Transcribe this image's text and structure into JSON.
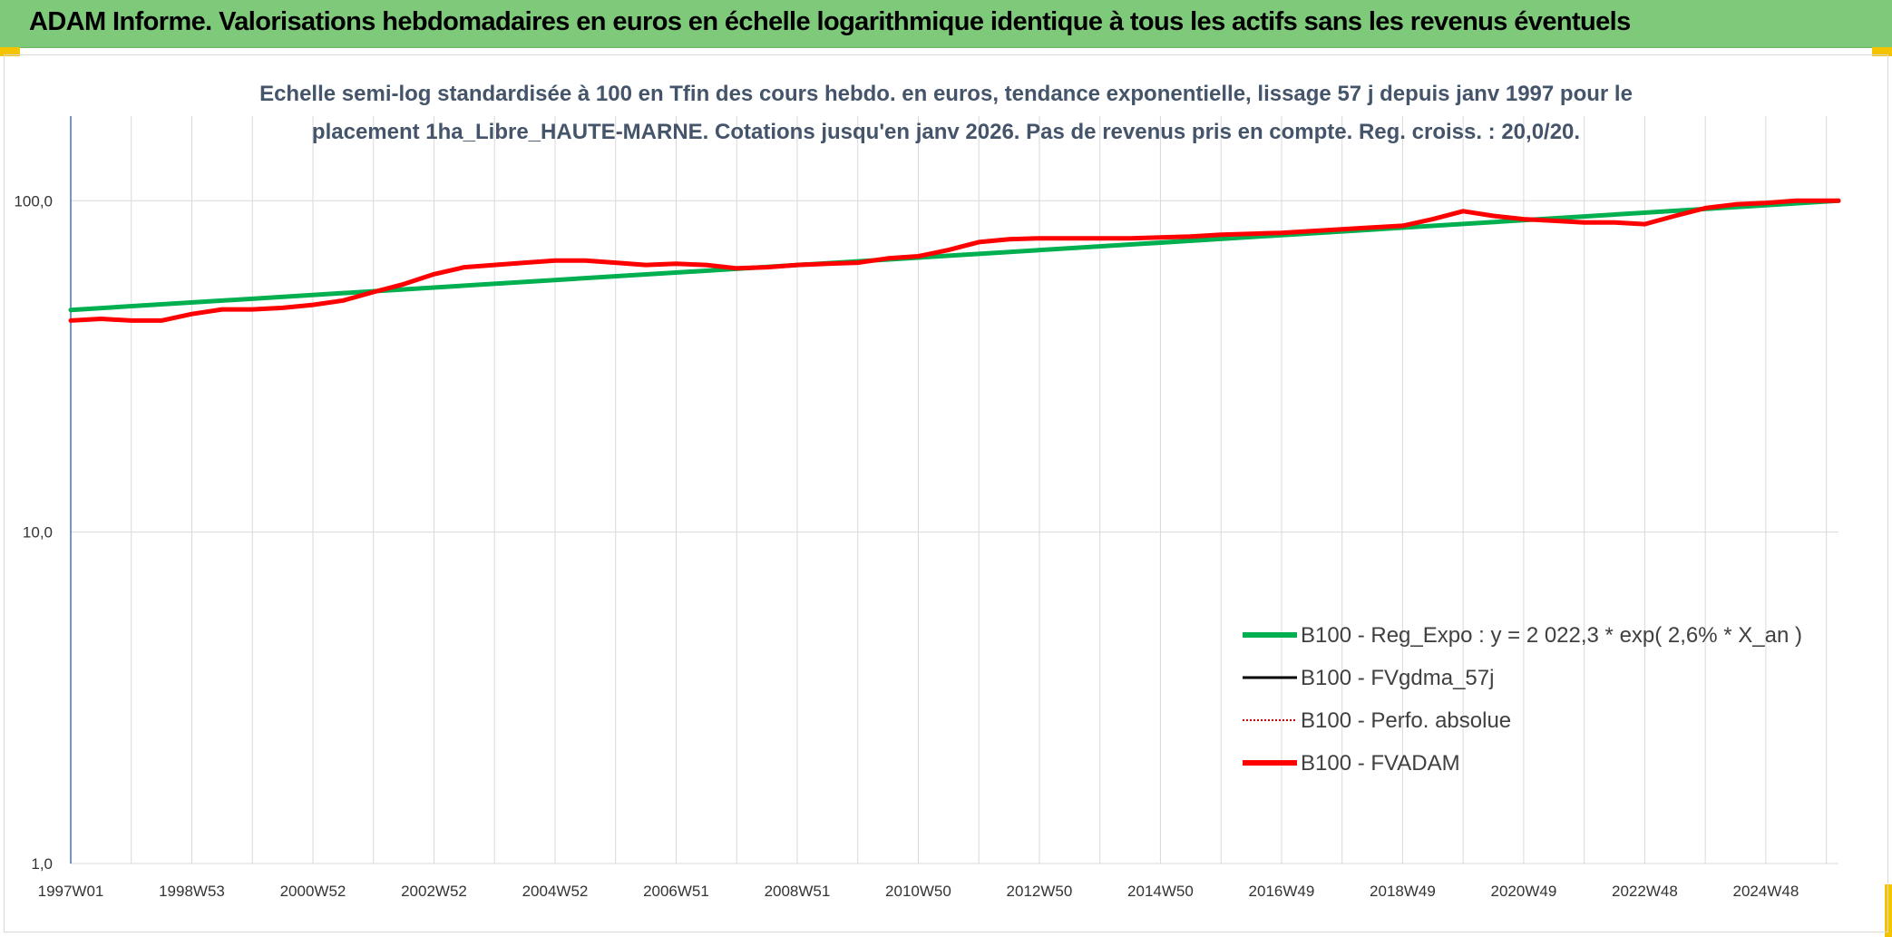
{
  "header": {
    "title": "ADAM Informe. Valorisations hebdomadaires en euros en échelle logarithmique identique à tous les actifs sans les revenus éventuels"
  },
  "colors": {
    "header_bg": "#7ec97a",
    "accent_corner": "#f5c400",
    "reg_expo": "#00b050",
    "fvgdma": "#000000",
    "perfo": "#c00000",
    "fvadam": "#ff0000",
    "subtitle": "#44546a"
  },
  "chart_data": {
    "type": "line",
    "title_lines": [
      "Echelle semi-log standardisée à 100 en Tfin des cours hebdo. en euros, tendance exponentielle, lissage 57 j depuis janv 1997 pour le",
      "placement 1ha_Libre_HAUTE-MARNE. Cotations jusqu'en janv 2026. Pas de revenus pris en compte. Reg. croiss. : 20,0/20."
    ],
    "y_scale": "log",
    "ylim": [
      1,
      180
    ],
    "y_ticks": [
      {
        "value": 1,
        "label": "1,0"
      },
      {
        "value": 10,
        "label": "10,0"
      },
      {
        "value": 100,
        "label": "100,0"
      }
    ],
    "xlim": [
      1997.0,
      2026.2
    ],
    "x_ticks": [
      {
        "value": 1997.0,
        "label": "1997W01"
      },
      {
        "value": 1999.0,
        "label": "1998W53"
      },
      {
        "value": 2001.0,
        "label": "2000W52"
      },
      {
        "value": 2003.0,
        "label": "2002W52"
      },
      {
        "value": 2005.0,
        "label": "2004W52"
      },
      {
        "value": 2007.0,
        "label": "2006W51"
      },
      {
        "value": 2009.0,
        "label": "2008W51"
      },
      {
        "value": 2011.0,
        "label": "2010W50"
      },
      {
        "value": 2013.0,
        "label": "2012W50"
      },
      {
        "value": 2015.0,
        "label": "2014W50"
      },
      {
        "value": 2017.0,
        "label": "2016W49"
      },
      {
        "value": 2019.0,
        "label": "2018W49"
      },
      {
        "value": 2021.0,
        "label": "2020W49"
      },
      {
        "value": 2023.0,
        "label": "2022W48"
      },
      {
        "value": 2025.0,
        "label": "2024W48"
      }
    ],
    "legend_position": "right",
    "series": [
      {
        "name": "B100 - Reg_Expo : y = 2 022,3 * exp( 2,6% *  X_an )",
        "style": "solid-thick",
        "color": "#00b050",
        "x": [
          1997.0,
          2026.2
        ],
        "y": [
          46.8,
          100.0
        ]
      },
      {
        "name": "B100 - FVgdma_57j",
        "style": "solid-thin",
        "color": "#000000",
        "x": [],
        "y": []
      },
      {
        "name": "B100 - Perfo. absolue",
        "style": "dotted",
        "color": "#c00000",
        "x": [],
        "y": []
      },
      {
        "name": "B100 - FVADAM",
        "style": "solid-thick",
        "color": "#ff0000",
        "x": [
          1997.0,
          1997.5,
          1998.0,
          1998.5,
          1999.0,
          1999.5,
          2000.0,
          2000.5,
          2001.0,
          2001.5,
          2002.0,
          2002.5,
          2003.0,
          2003.5,
          2004.0,
          2004.5,
          2005.0,
          2005.5,
          2006.0,
          2006.5,
          2007.0,
          2007.5,
          2008.0,
          2008.5,
          2009.0,
          2009.5,
          2010.0,
          2010.5,
          2011.0,
          2011.5,
          2012.0,
          2012.5,
          2013.0,
          2013.5,
          2014.0,
          2014.5,
          2015.0,
          2015.5,
          2016.0,
          2016.5,
          2017.0,
          2017.5,
          2018.0,
          2018.5,
          2019.0,
          2019.5,
          2020.0,
          2020.5,
          2021.0,
          2021.5,
          2022.0,
          2022.5,
          2023.0,
          2023.5,
          2024.0,
          2024.5,
          2025.0,
          2025.5,
          2026.2
        ],
        "y": [
          43.5,
          44.0,
          43.5,
          43.5,
          45.5,
          47.0,
          47.0,
          47.5,
          48.5,
          50.0,
          53.0,
          56.0,
          60.0,
          63.0,
          64.0,
          65.0,
          66.0,
          66.0,
          65.0,
          64.0,
          64.5,
          64.0,
          62.5,
          63.0,
          64.0,
          64.5,
          65.0,
          67.0,
          68.0,
          71.0,
          75.0,
          76.5,
          77.0,
          77.0,
          77.0,
          77.0,
          77.5,
          78.0,
          79.0,
          79.5,
          80.0,
          81.0,
          82.0,
          83.0,
          84.0,
          88.0,
          93.0,
          90.0,
          88.0,
          87.0,
          86.0,
          86.0,
          85.0,
          90.0,
          95.0,
          97.5,
          98.5,
          100.0,
          100.0
        ]
      }
    ]
  }
}
